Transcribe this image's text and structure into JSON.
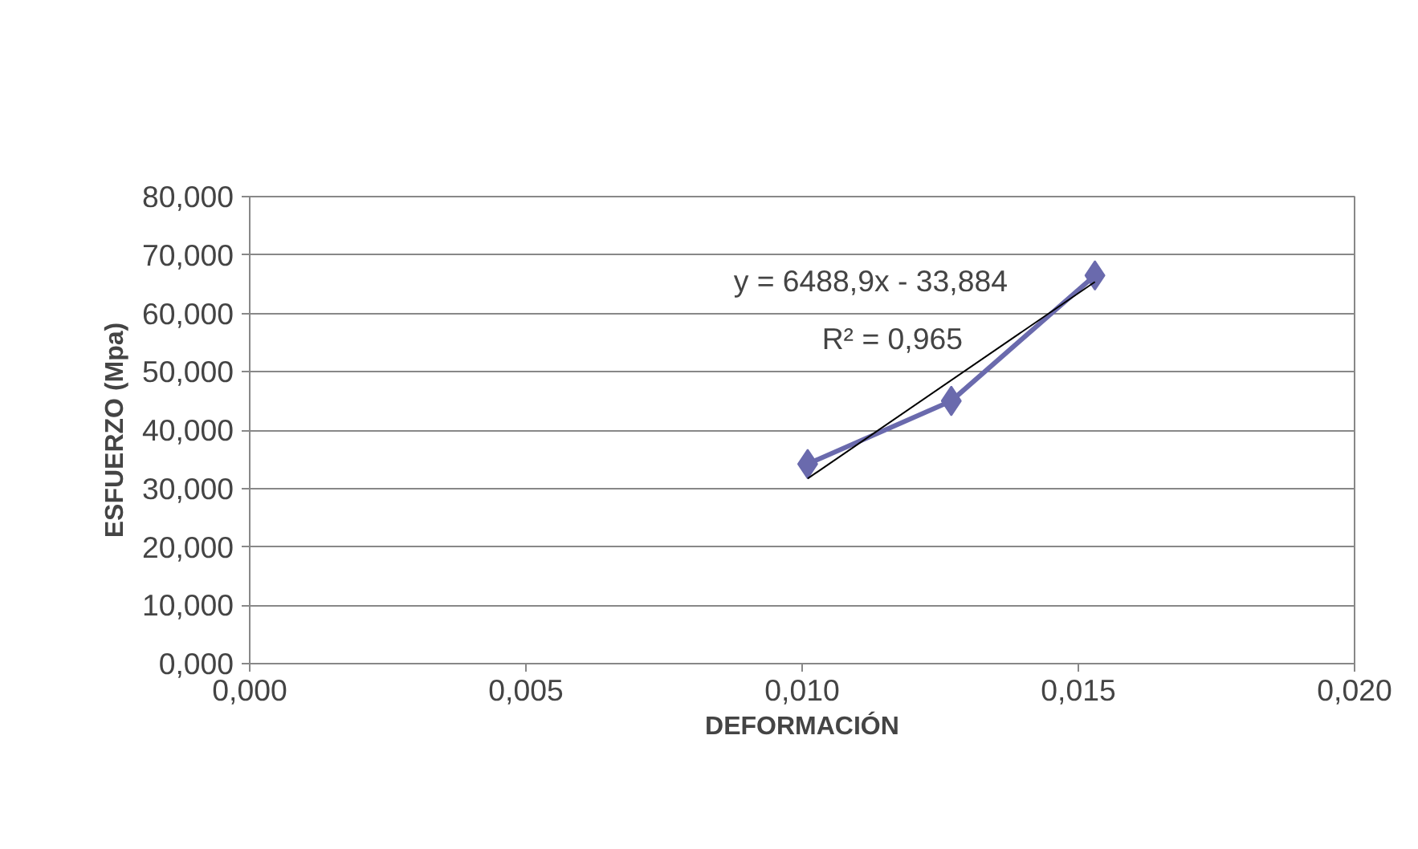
{
  "chart_data": {
    "type": "line",
    "xlabel": "DEFORMACIÓN",
    "ylabel": "ESFUERZO (Mpa)",
    "series": [
      {
        "color": "#6a6aad",
        "x": [
          0.0101,
          0.0127,
          0.0153
        ],
        "values": [
          34.2,
          45.0,
          66.5
        ],
        "marker": "diamond"
      },
      {
        "color": "#000000",
        "x": [
          0.0101,
          0.0153
        ],
        "values": [
          31.7,
          65.4
        ],
        "marker": "none"
      }
    ],
    "xlim": [
      0,
      0.02
    ],
    "xticks": [
      {
        "value": 0,
        "label": "0,000"
      },
      {
        "value": 0.005,
        "label": "0,005"
      },
      {
        "value": 0.01,
        "label": "0,010"
      },
      {
        "value": 0.015,
        "label": "0,015"
      },
      {
        "value": 0.02,
        "label": "0,020"
      }
    ],
    "ylim": [
      0,
      80
    ],
    "yticks": [
      {
        "value": 0,
        "label": "0,000"
      },
      {
        "value": 10,
        "label": "10,000"
      },
      {
        "value": 20,
        "label": "20,000"
      },
      {
        "value": 30,
        "label": "30,000"
      },
      {
        "value": 40,
        "label": "40,000"
      },
      {
        "value": 50,
        "label": "50,000"
      },
      {
        "value": 60,
        "label": "60,000"
      },
      {
        "value": 70,
        "label": "70,000"
      },
      {
        "value": 80,
        "label": "80,000"
      }
    ],
    "grid": "y",
    "annotations": [
      "y = 6488,9x - 33,884",
      "R² = 0,965"
    ]
  }
}
